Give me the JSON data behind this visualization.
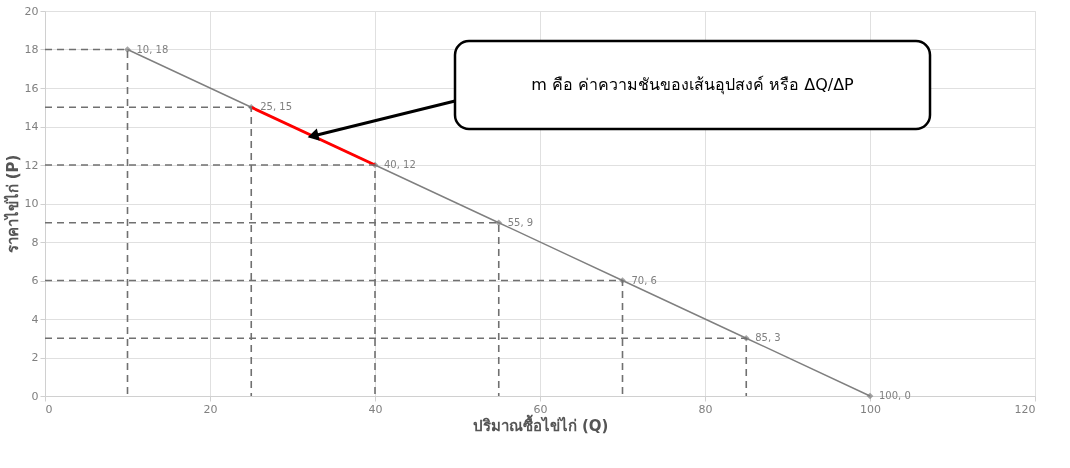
{
  "chart_data": {
    "type": "line",
    "xlabel": "ปริมาณซื้อไข่ไก่ (Q)",
    "ylabel": "ราคาไข่ไก่ (P)",
    "xlim": [
      0,
      120
    ],
    "xticks": [
      0,
      20,
      40,
      60,
      80,
      100,
      120
    ],
    "ylim": [
      0,
      20
    ],
    "yticks": [
      0,
      2,
      4,
      6,
      8,
      10,
      12,
      14,
      16,
      18,
      20
    ],
    "grid": true,
    "series": [
      {
        "color": "#7f7f7f",
        "marker": "diamond",
        "x": [
          10,
          25,
          40,
          55,
          70,
          85,
          100
        ],
        "values": [
          18,
          15,
          12,
          9,
          6,
          3,
          0
        ],
        "value_labels": [
          "10, 18",
          "25, 15",
          "40, 12",
          "55, 9",
          "70, 6",
          "85, 3",
          "100, 0"
        ]
      },
      {
        "color": "#ff0000",
        "x": [
          25,
          40
        ],
        "values": [
          15,
          12
        ]
      },
      {
        "color": "#707070",
        "line_style": "dashed",
        "x": [
          0,
          10,
          10
        ],
        "values": [
          18,
          18,
          0
        ]
      },
      {
        "color": "#707070",
        "line_style": "dashed",
        "x": [
          0,
          25,
          25
        ],
        "values": [
          15,
          15,
          0
        ]
      },
      {
        "color": "#707070",
        "line_style": "dashed",
        "x": [
          0,
          40,
          40
        ],
        "values": [
          12,
          12,
          0
        ]
      },
      {
        "color": "#707070",
        "line_style": "dashed",
        "x": [
          0,
          55,
          55
        ],
        "values": [
          9,
          9,
          0
        ]
      },
      {
        "color": "#707070",
        "line_style": "dashed",
        "x": [
          0,
          70,
          70
        ],
        "values": [
          6,
          6,
          0
        ]
      },
      {
        "color": "#707070",
        "line_style": "dashed",
        "x": [
          0,
          85,
          85
        ],
        "values": [
          3,
          3,
          0
        ]
      }
    ],
    "annotations": [
      "m คือ ค่าความชันของเส้นอุปสงค์ หรือ ΔQ/ΔP"
    ]
  }
}
